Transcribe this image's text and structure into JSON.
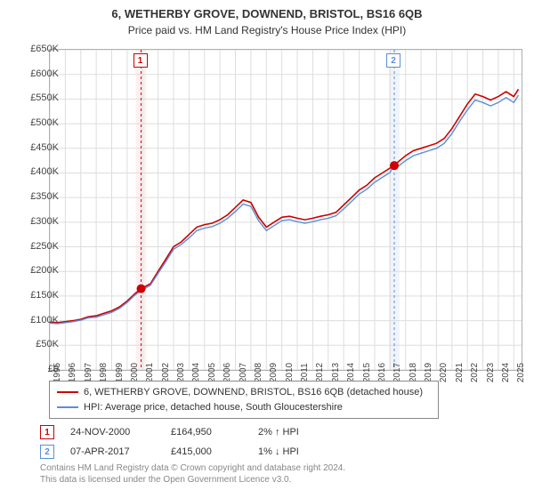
{
  "title_line1": "6, WETHERBY GROVE, DOWNEND, BRISTOL, BS16 6QB",
  "title_line2": "Price paid vs. HM Land Registry's House Price Index (HPI)",
  "chart": {
    "type": "line",
    "background_color": "#ffffff",
    "grid_color": "#dddddd",
    "border_color": "#b0b0b0",
    "ylim": [
      0,
      650000
    ],
    "ytick_step": 50000,
    "ytick_prefix": "£",
    "ytick_suffix": "K",
    "ytick_labels": [
      "£0",
      "£50K",
      "£100K",
      "£150K",
      "£200K",
      "£250K",
      "£300K",
      "£350K",
      "£400K",
      "£450K",
      "£500K",
      "£550K",
      "£600K",
      "£650K"
    ],
    "xlim": [
      1995,
      2025.5
    ],
    "xtick_step": 1,
    "xtick_labels": [
      "1995",
      "1996",
      "1997",
      "1998",
      "1999",
      "2000",
      "2001",
      "2002",
      "2003",
      "2004",
      "2005",
      "2006",
      "2007",
      "2008",
      "2009",
      "2010",
      "2011",
      "2012",
      "2013",
      "2014",
      "2015",
      "2016",
      "2017",
      "2018",
      "2019",
      "2020",
      "2021",
      "2022",
      "2023",
      "2024",
      "2025"
    ],
    "grid": true,
    "label_fontsize": 11,
    "series": [
      {
        "name": "property",
        "color": "#cc0000",
        "width": 1.6,
        "points": [
          [
            1995.0,
            97000
          ],
          [
            1995.5,
            96000
          ],
          [
            1996.0,
            98000
          ],
          [
            1996.5,
            100000
          ],
          [
            1997.0,
            103000
          ],
          [
            1997.5,
            108000
          ],
          [
            1998.0,
            110000
          ],
          [
            1998.5,
            115000
          ],
          [
            1999.0,
            120000
          ],
          [
            1999.5,
            128000
          ],
          [
            2000.0,
            140000
          ],
          [
            2000.5,
            155000
          ],
          [
            2000.9,
            164950
          ],
          [
            2001.5,
            175000
          ],
          [
            2002.0,
            200000
          ],
          [
            2002.5,
            225000
          ],
          [
            2003.0,
            250000
          ],
          [
            2003.5,
            260000
          ],
          [
            2004.0,
            275000
          ],
          [
            2004.5,
            290000
          ],
          [
            2005.0,
            295000
          ],
          [
            2005.5,
            298000
          ],
          [
            2006.0,
            305000
          ],
          [
            2006.5,
            315000
          ],
          [
            2007.0,
            330000
          ],
          [
            2007.5,
            345000
          ],
          [
            2008.0,
            340000
          ],
          [
            2008.5,
            310000
          ],
          [
            2009.0,
            290000
          ],
          [
            2009.5,
            300000
          ],
          [
            2010.0,
            310000
          ],
          [
            2010.5,
            312000
          ],
          [
            2011.0,
            308000
          ],
          [
            2011.5,
            305000
          ],
          [
            2012.0,
            308000
          ],
          [
            2012.5,
            312000
          ],
          [
            2013.0,
            315000
          ],
          [
            2013.5,
            320000
          ],
          [
            2014.0,
            335000
          ],
          [
            2014.5,
            350000
          ],
          [
            2015.0,
            365000
          ],
          [
            2015.5,
            375000
          ],
          [
            2016.0,
            390000
          ],
          [
            2016.5,
            400000
          ],
          [
            2017.0,
            410000
          ],
          [
            2017.27,
            415000
          ],
          [
            2017.5,
            422000
          ],
          [
            2018.0,
            435000
          ],
          [
            2018.5,
            445000
          ],
          [
            2019.0,
            450000
          ],
          [
            2019.5,
            455000
          ],
          [
            2020.0,
            460000
          ],
          [
            2020.5,
            470000
          ],
          [
            2021.0,
            490000
          ],
          [
            2021.5,
            515000
          ],
          [
            2022.0,
            540000
          ],
          [
            2022.5,
            560000
          ],
          [
            2023.0,
            555000
          ],
          [
            2023.5,
            548000
          ],
          [
            2024.0,
            555000
          ],
          [
            2024.5,
            565000
          ],
          [
            2025.0,
            555000
          ],
          [
            2025.3,
            570000
          ]
        ]
      },
      {
        "name": "hpi",
        "color": "#5a8fd6",
        "width": 1.4,
        "points": [
          [
            1995.0,
            95000
          ],
          [
            1995.5,
            94000
          ],
          [
            1996.0,
            96000
          ],
          [
            1996.5,
            98000
          ],
          [
            1997.0,
            101000
          ],
          [
            1997.5,
            106000
          ],
          [
            1998.0,
            107000
          ],
          [
            1998.5,
            112000
          ],
          [
            1999.0,
            117000
          ],
          [
            1999.5,
            125000
          ],
          [
            2000.0,
            137000
          ],
          [
            2000.5,
            152000
          ],
          [
            2000.9,
            161000
          ],
          [
            2001.5,
            172000
          ],
          [
            2002.0,
            196000
          ],
          [
            2002.5,
            220000
          ],
          [
            2003.0,
            245000
          ],
          [
            2003.5,
            255000
          ],
          [
            2004.0,
            268000
          ],
          [
            2004.5,
            283000
          ],
          [
            2005.0,
            288000
          ],
          [
            2005.5,
            291000
          ],
          [
            2006.0,
            298000
          ],
          [
            2006.5,
            308000
          ],
          [
            2007.0,
            322000
          ],
          [
            2007.5,
            337000
          ],
          [
            2008.0,
            332000
          ],
          [
            2008.5,
            303000
          ],
          [
            2009.0,
            283000
          ],
          [
            2009.5,
            293000
          ],
          [
            2010.0,
            303000
          ],
          [
            2010.5,
            305000
          ],
          [
            2011.0,
            301000
          ],
          [
            2011.5,
            298000
          ],
          [
            2012.0,
            301000
          ],
          [
            2012.5,
            305000
          ],
          [
            2013.0,
            308000
          ],
          [
            2013.5,
            313000
          ],
          [
            2014.0,
            327000
          ],
          [
            2014.5,
            342000
          ],
          [
            2015.0,
            357000
          ],
          [
            2015.5,
            367000
          ],
          [
            2016.0,
            381000
          ],
          [
            2016.5,
            391000
          ],
          [
            2017.0,
            401000
          ],
          [
            2017.27,
            419000
          ],
          [
            2017.5,
            413000
          ],
          [
            2018.0,
            425000
          ],
          [
            2018.5,
            435000
          ],
          [
            2019.0,
            440000
          ],
          [
            2019.5,
            445000
          ],
          [
            2020.0,
            450000
          ],
          [
            2020.5,
            460000
          ],
          [
            2021.0,
            480000
          ],
          [
            2021.5,
            505000
          ],
          [
            2022.0,
            528000
          ],
          [
            2022.5,
            548000
          ],
          [
            2023.0,
            543000
          ],
          [
            2023.5,
            536000
          ],
          [
            2024.0,
            543000
          ],
          [
            2024.5,
            553000
          ],
          [
            2025.0,
            543000
          ],
          [
            2025.3,
            558000
          ]
        ]
      }
    ],
    "markers": [
      {
        "x": 2000.9,
        "y": 164950,
        "color": "#cc0000",
        "size": 5
      },
      {
        "x": 2017.27,
        "y": 415000,
        "color": "#cc0000",
        "size": 5
      }
    ],
    "event_bands": [
      {
        "x": 2000.9,
        "label": "1",
        "color": "#cc0000",
        "band_color": "#fff0f0",
        "line_dash": "3,3"
      },
      {
        "x": 2017.27,
        "label": "2",
        "color": "#5a8fd6",
        "band_color": "#f0f4fb",
        "line_dash": "3,3"
      }
    ]
  },
  "legend": {
    "items": [
      {
        "color": "#cc0000",
        "label": "6, WETHERBY GROVE, DOWNEND, BRISTOL, BS16 6QB (detached house)"
      },
      {
        "color": "#5a8fd6",
        "label": "HPI: Average price, detached house, South Gloucestershire"
      }
    ]
  },
  "events": [
    {
      "num": "1",
      "color": "#cc0000",
      "date": "24-NOV-2000",
      "price": "£164,950",
      "hpi_pct": "2%",
      "arrow": "↑",
      "hpi_label": "HPI"
    },
    {
      "num": "2",
      "color": "#5a8fd6",
      "date": "07-APR-2017",
      "price": "£415,000",
      "hpi_pct": "1%",
      "arrow": "↓",
      "hpi_label": "HPI"
    }
  ],
  "footer_line1": "Contains HM Land Registry data © Crown copyright and database right 2024.",
  "footer_line2": "This data is licensed under the Open Government Licence v3.0."
}
